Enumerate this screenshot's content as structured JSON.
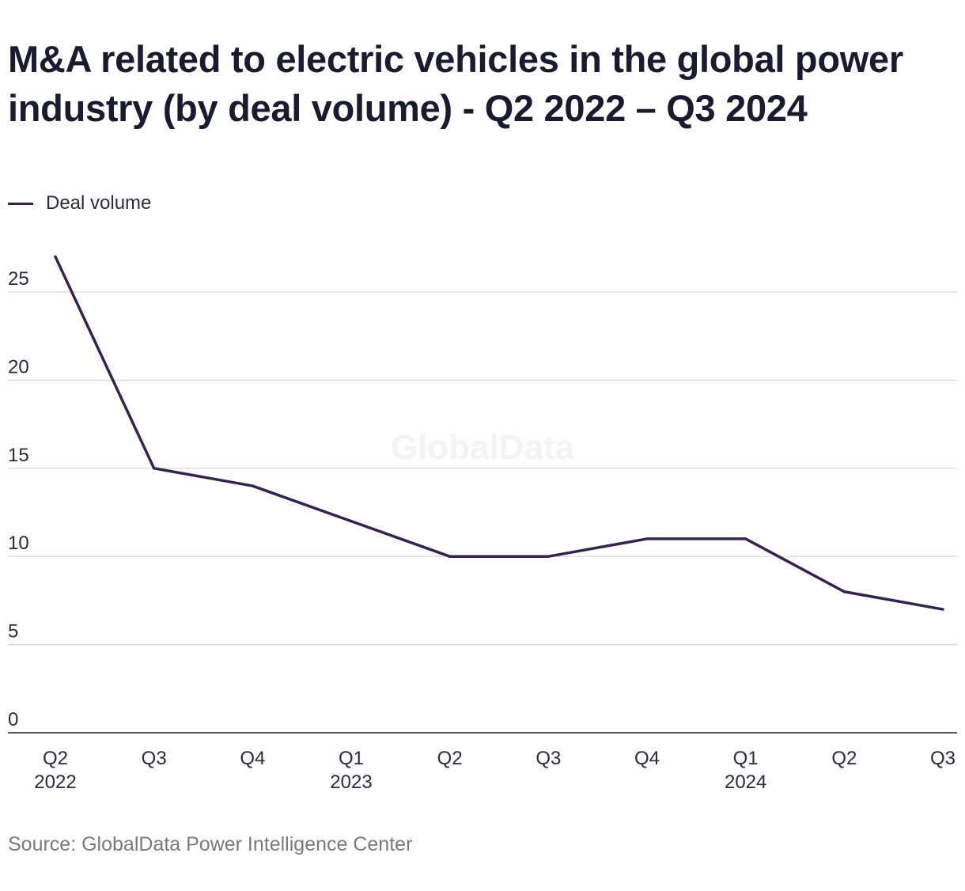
{
  "chart_data": {
    "type": "line",
    "title": "M&A related to electric vehicles in the global power industry (by deal volume) - Q2 2022 – Q3 2024",
    "categories": [
      [
        "Q2",
        "2022"
      ],
      [
        "Q3",
        ""
      ],
      [
        "Q4",
        ""
      ],
      [
        "Q1",
        "2023"
      ],
      [
        "Q2",
        ""
      ],
      [
        "Q3",
        ""
      ],
      [
        "Q4",
        ""
      ],
      [
        "Q1",
        "2024"
      ],
      [
        "Q2",
        ""
      ],
      [
        "Q3",
        ""
      ]
    ],
    "series": [
      {
        "name": "Deal volume",
        "color": "#35224e",
        "values": [
          27,
          15,
          14,
          12,
          10,
          10,
          11,
          11,
          8,
          7
        ]
      }
    ],
    "yticks": [
      "0",
      "5",
      "10",
      "15",
      "20",
      "25"
    ],
    "ylim": [
      0,
      27
    ],
    "grid": true,
    "legend": "top-left"
  },
  "watermark": "GlobalData",
  "source": "Source: GlobalData Power Intelligence Center"
}
